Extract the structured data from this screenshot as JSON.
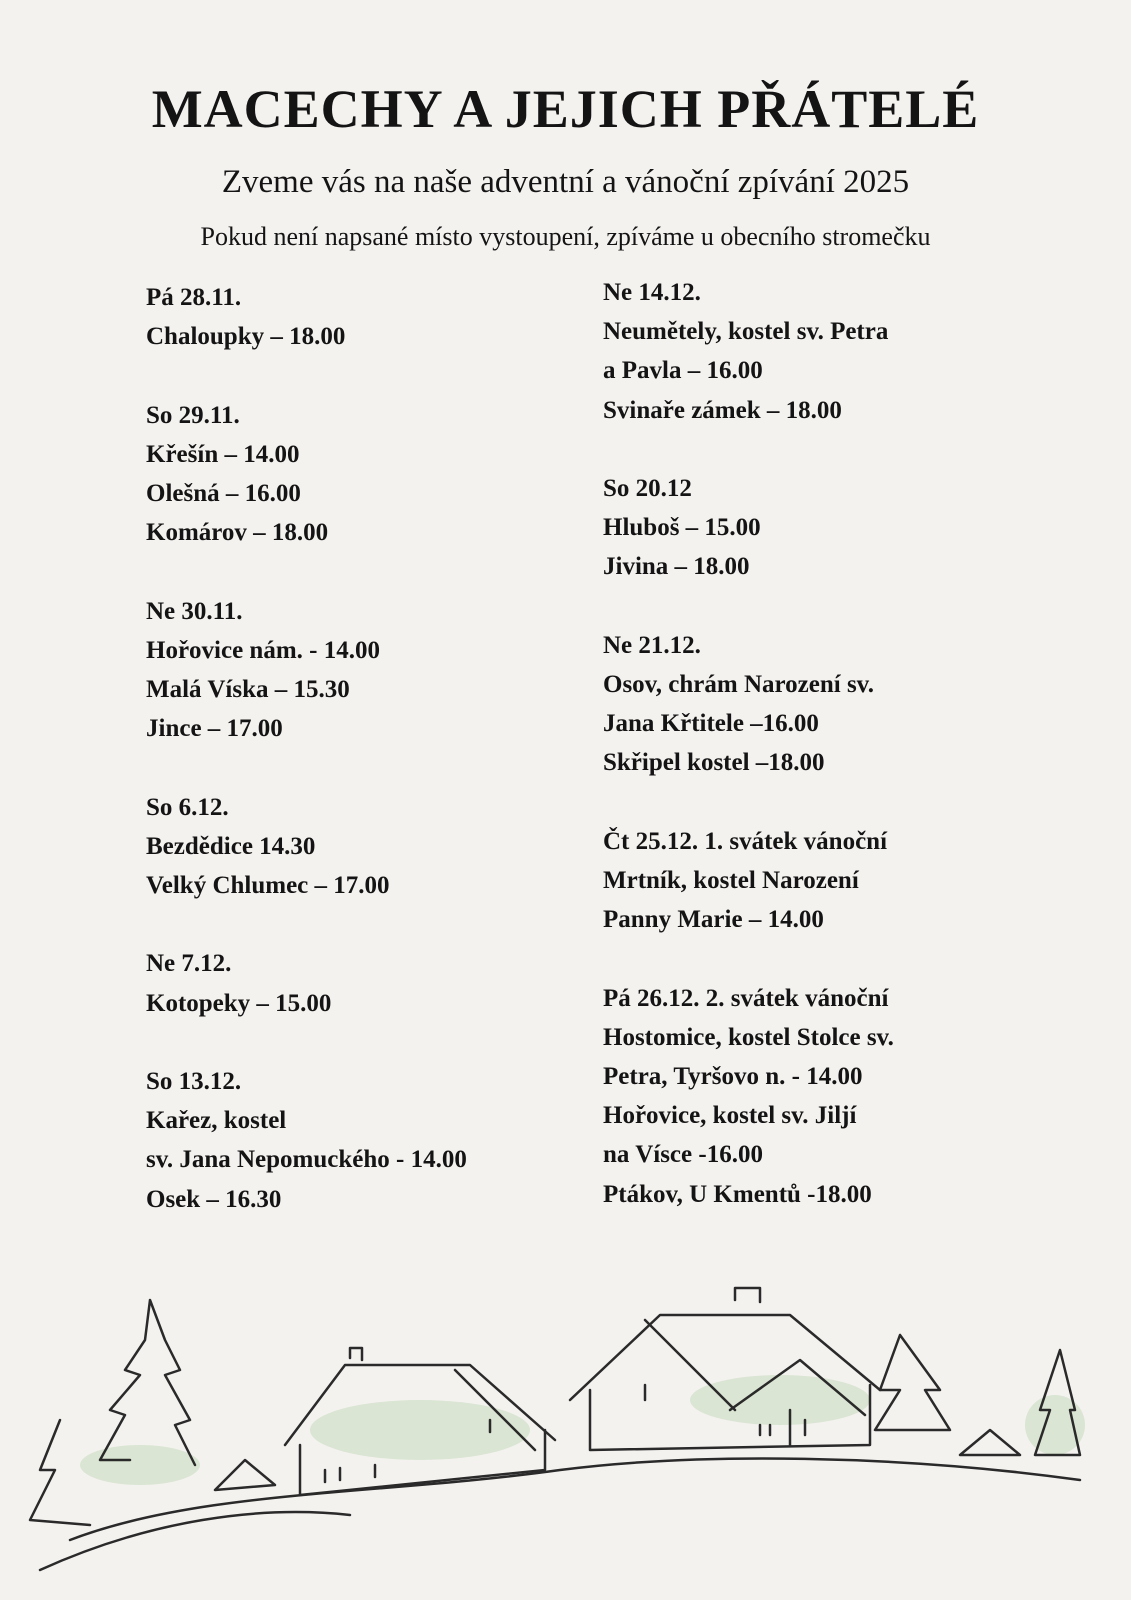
{
  "header": {
    "title": "MACECHY A JEJICH PŘÁTELÉ",
    "subtitle": "Zveme vás na naše adventní a vánoční zpívání 2025",
    "note": "Pokud není napsané místo vystoupení, zpíváme u obecního stromečku"
  },
  "schedule": {
    "left": [
      {
        "date": "Pá 28.11.",
        "lines": [
          "Chaloupky – 18.00"
        ]
      },
      {
        "date": "So 29.11.",
        "lines": [
          "Křešín – 14.00",
          "Olešná – 16.00",
          "Komárov – 18.00"
        ]
      },
      {
        "date": "Ne 30.11.",
        "lines": [
          "Hořovice nám. - 14.00",
          "Malá Víska – 15.30",
          "Jince – 17.00"
        ]
      },
      {
        "date": "So 6.12.",
        "lines": [
          "Bezdědice 14.30",
          "Velký Chlumec – 17.00"
        ]
      },
      {
        "date": "Ne 7.12.",
        "lines": [
          "Kotopeky – 15.00"
        ]
      },
      {
        "date": "So 13.12.",
        "lines": [
          "Kařez, kostel",
          "sv. Jana Nepomuckého - 14.00",
          "Osek – 16.30"
        ]
      }
    ],
    "right": [
      {
        "date": "Ne 14.12.",
        "lines": [
          "Neumětely, kostel sv. Petra",
          "a Pavla – 16.00",
          "Svinaře zámek – 18.00"
        ]
      },
      {
        "date": "So 20.12",
        "lines": [
          "Hluboš – 15.00",
          "Jivina – 18.00"
        ]
      },
      {
        "date": "Ne 21.12.",
        "lines": [
          "Osov, chrám Narození sv.",
          "Jana Křtitele –16.00",
          "Skřipel kostel –18.00"
        ]
      },
      {
        "date": "Čt 25.12. 1. svátek vánoční",
        "lines": [
          "Mrtník, kostel Narození",
          "Panny Marie – 14.00"
        ]
      },
      {
        "date": "Pá 26.12. 2. svátek vánoční",
        "lines": [
          "Hostomice, kostel Stolce sv.",
          "Petra, Tyršovo n. - 14.00",
          "Hořovice, kostel sv. Jiljí",
          "na Vísce -16.00",
          "Ptákov, U Kmentů -18.00"
        ]
      }
    ]
  },
  "colors": {
    "background": "#f4f2ef",
    "text": "#141414",
    "sketch": "#2a2a2a",
    "snow_shade": "#cfe0c8"
  }
}
